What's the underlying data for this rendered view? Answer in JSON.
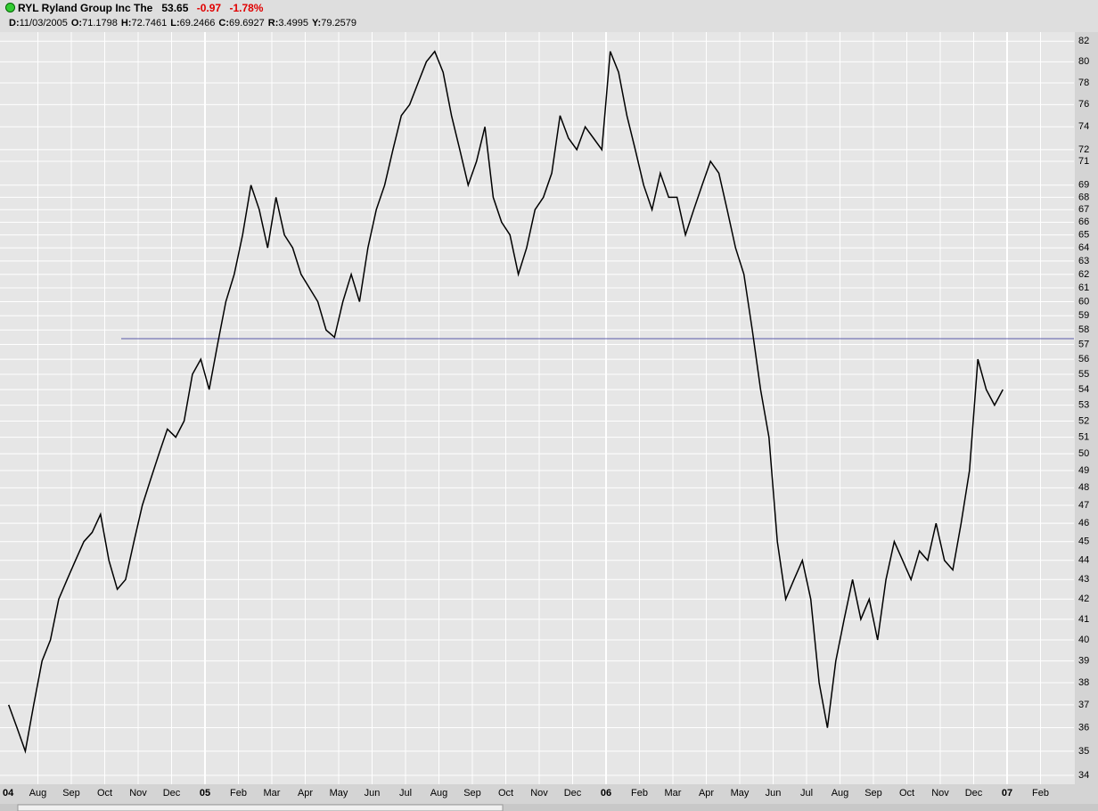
{
  "header": {
    "symbol": "RYL Ryland Group Inc The",
    "last": "53.65",
    "change": "-0.97",
    "change_pct": "-1.78%",
    "info": [
      {
        "label": "D:",
        "value": "11/03/2005"
      },
      {
        "label": "O:",
        "value": "71.1798"
      },
      {
        "label": "H:",
        "value": "72.7461"
      },
      {
        "label": "L:",
        "value": "69.2466"
      },
      {
        "label": "C:",
        "value": "69.6927"
      },
      {
        "label": "R:",
        "value": "3.4995"
      },
      {
        "label": "Y:",
        "value": "79.2579"
      }
    ]
  },
  "chart_data": {
    "type": "line",
    "color": "#000000",
    "log_scale": true,
    "grid": true,
    "categories": [
      "04",
      null,
      null,
      null,
      "Aug",
      null,
      null,
      null,
      "Sep",
      null,
      null,
      null,
      "Oct",
      null,
      null,
      null,
      "Nov",
      null,
      null,
      null,
      "Dec",
      null,
      null,
      null,
      "05",
      null,
      null,
      null,
      "Feb",
      null,
      null,
      null,
      "Mar",
      null,
      null,
      null,
      "Apr",
      null,
      null,
      null,
      "May",
      null,
      null,
      null,
      "Jun",
      null,
      null,
      null,
      "Jul",
      null,
      null,
      null,
      "Aug",
      null,
      null,
      null,
      "Sep",
      null,
      null,
      null,
      "Oct",
      null,
      null,
      null,
      "Nov",
      null,
      null,
      null,
      "Dec",
      null,
      null,
      null,
      "06",
      null,
      null,
      null,
      "Feb",
      null,
      null,
      null,
      "Mar",
      null,
      null,
      null,
      "Apr",
      null,
      null,
      null,
      "May",
      null,
      null,
      null,
      "Jun",
      null,
      null,
      null,
      "Jul",
      null,
      null,
      null,
      "Aug",
      null,
      null,
      null,
      "Sep",
      null,
      null,
      null,
      "Oct",
      null,
      null,
      null,
      "Nov",
      null,
      null,
      null,
      "Dec",
      null,
      null,
      null,
      "07",
      null,
      null,
      null,
      "Feb",
      null,
      null,
      null
    ],
    "values": [
      37,
      36,
      35,
      37,
      39,
      40,
      42,
      43,
      44,
      45,
      45.5,
      46.5,
      44,
      42.5,
      43,
      45,
      47,
      48.5,
      50,
      51.5,
      51,
      52,
      55,
      56,
      54,
      57,
      60,
      62,
      65,
      69,
      67,
      64,
      68,
      65,
      64,
      62,
      61,
      60,
      58,
      57.5,
      60,
      62,
      60,
      64,
      67,
      69,
      72,
      75,
      76,
      78,
      80,
      81,
      79,
      75,
      72,
      69,
      71,
      74,
      68,
      66,
      65,
      62,
      64,
      67,
      68,
      70,
      75,
      73,
      72,
      74,
      73,
      72,
      81,
      79,
      75,
      72,
      69,
      67,
      70,
      68,
      68,
      65,
      67,
      69,
      71,
      70,
      67,
      64,
      62,
      58,
      54,
      51,
      45,
      42,
      43,
      44,
      42,
      38,
      36,
      39,
      41,
      43,
      41,
      42,
      40,
      43,
      45,
      44,
      43,
      44.5,
      44,
      46,
      44,
      43.5,
      46,
      49,
      56,
      54,
      53,
      54,
      null,
      null,
      null,
      null,
      null,
      null,
      null,
      null
    ],
    "hline": {
      "value": 57.4,
      "color": "#5a5aa8"
    },
    "ylim": [
      33.64,
      82.9
    ],
    "yticks": [
      34,
      35,
      36,
      37,
      38,
      39,
      40,
      41,
      42,
      43,
      44,
      45,
      46,
      47,
      48,
      49,
      50,
      51,
      52,
      53,
      54,
      55,
      56,
      57,
      58,
      59,
      60,
      61,
      62,
      63,
      64,
      65,
      66,
      67,
      68,
      69,
      71,
      72,
      74,
      76,
      78,
      80,
      82
    ]
  }
}
